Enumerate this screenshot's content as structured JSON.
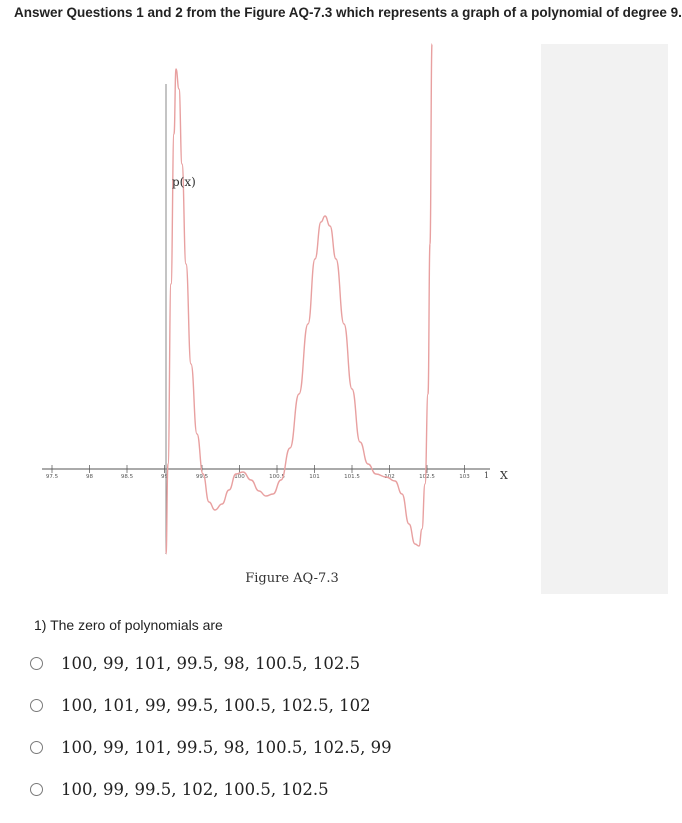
{
  "heading": "Answer Questions 1 and 2 from the Figure AQ-7.3 which represents a graph of a polynomial of degree 9.",
  "figure": {
    "curve_label": "p(x)",
    "axis_label": "X",
    "axis_end_tick": "1",
    "caption": "Figure AQ-7.3",
    "ticks": [
      "97.5",
      "98",
      "98.5",
      "99",
      "99.5",
      "100",
      "100.5",
      "101",
      "101.5",
      "102",
      "102.5",
      "103"
    ],
    "colors": {
      "curve": "#e8a0a0",
      "axis": "#555555"
    }
  },
  "question": {
    "text": "1) The zero of polynomials are",
    "options": [
      {
        "label": "100, 99, 101, 99.5, 98, 100.5, 102.5"
      },
      {
        "label": "100, 101, 99, 99.5, 100.5, 102.5, 102"
      },
      {
        "label": "100, 99, 101, 99.5, 98, 100.5, 102.5, 99"
      },
      {
        "label": "100, 99, 99.5, 102, 100.5, 102.5"
      }
    ]
  }
}
